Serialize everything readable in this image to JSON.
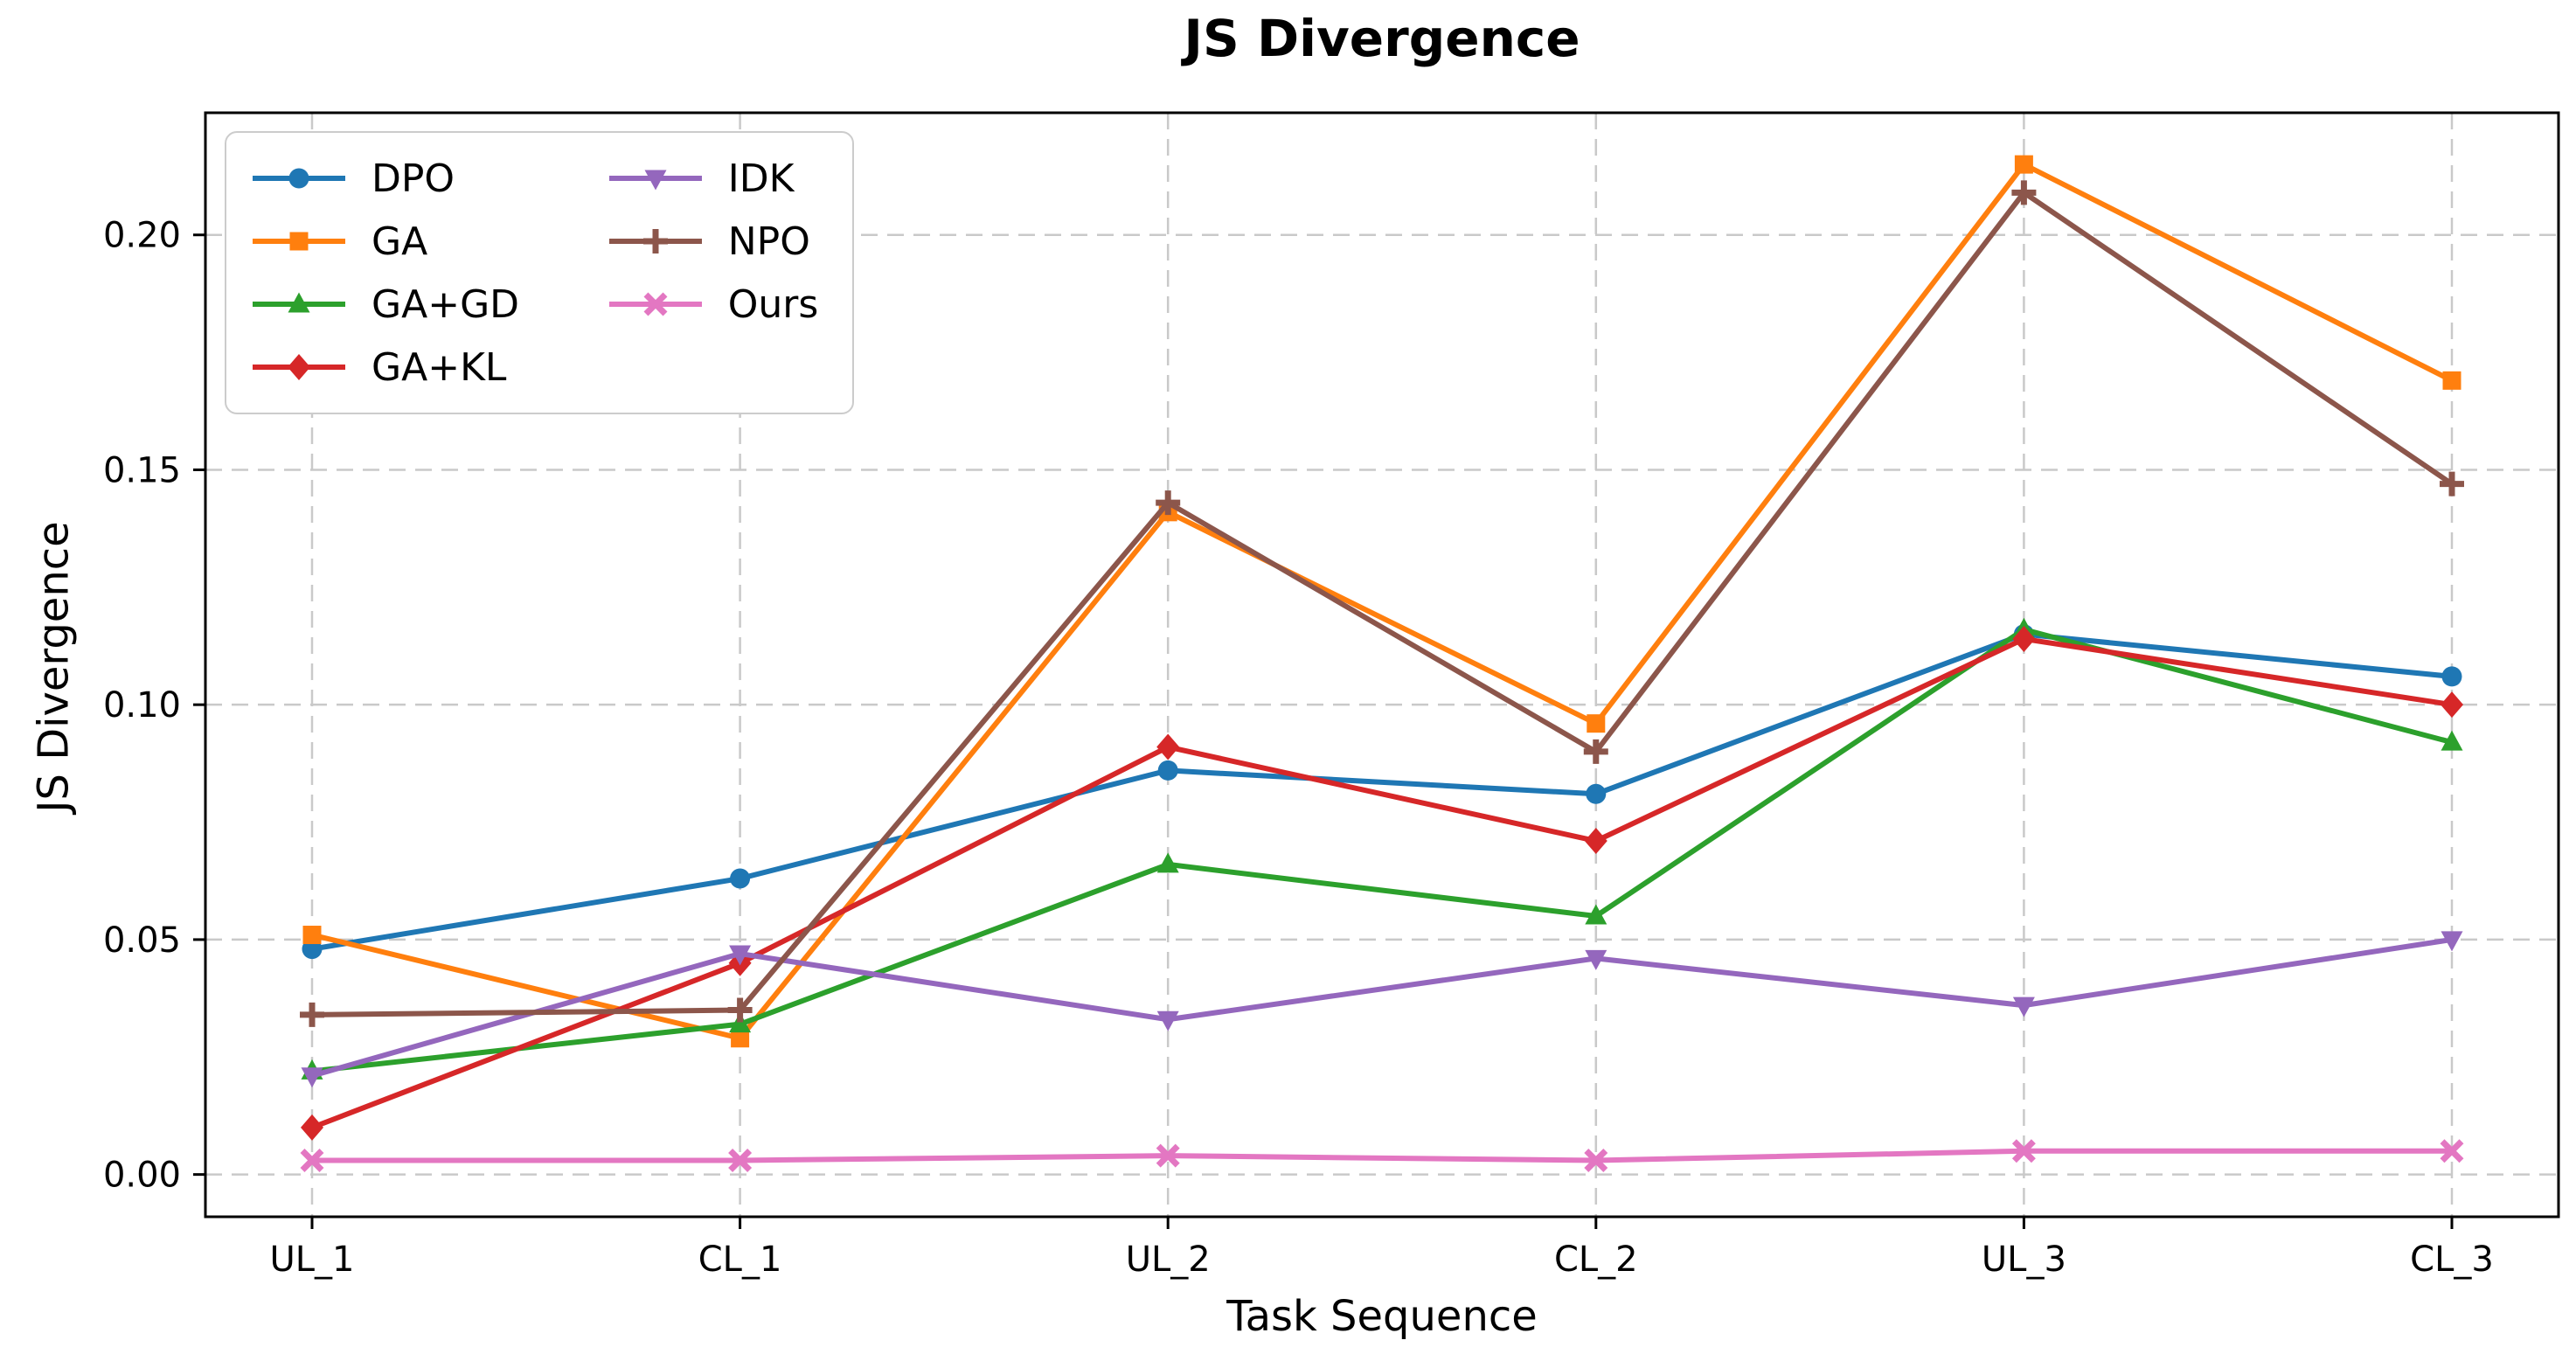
{
  "page": {
    "background": "#ffffff"
  },
  "chart_data": {
    "type": "line",
    "title": "JS Divergence",
    "xlabel": "Task Sequence",
    "ylabel": "JS Divergence",
    "categories": [
      "UL_1",
      "CL_1",
      "UL_2",
      "CL_2",
      "UL_3",
      "CL_3"
    ],
    "ytick_values": [
      0.0,
      0.05,
      0.1,
      0.15,
      0.2
    ],
    "ytick_labels": [
      "0.00",
      "0.05",
      "0.10",
      "0.15",
      "0.20"
    ],
    "ylim": [
      -0.009,
      0.226
    ],
    "grid": true,
    "grid_color": "#c9c9c9",
    "spine_color": "#000000",
    "legend_position": "upper-left",
    "legend_columns": 2,
    "series": [
      {
        "name": "DPO",
        "color": "#1f77b4",
        "marker": "circle",
        "values": [
          0.048,
          0.063,
          0.086,
          0.081,
          0.115,
          0.106
        ]
      },
      {
        "name": "GA",
        "color": "#ff7f0e",
        "marker": "square",
        "values": [
          0.051,
          0.029,
          0.141,
          0.096,
          0.215,
          0.169
        ]
      },
      {
        "name": "GA+GD",
        "color": "#2ca02c",
        "marker": "triangle-up",
        "values": [
          0.022,
          0.032,
          0.066,
          0.055,
          0.116,
          0.092
        ]
      },
      {
        "name": "GA+KL",
        "color": "#d62728",
        "marker": "diamond",
        "values": [
          0.01,
          0.045,
          0.091,
          0.071,
          0.114,
          0.1
        ]
      },
      {
        "name": "IDK",
        "color": "#9467bd",
        "marker": "triangle-down",
        "values": [
          0.021,
          0.047,
          0.033,
          0.046,
          0.036,
          0.05
        ]
      },
      {
        "name": "NPO",
        "color": "#8c564b",
        "marker": "plus",
        "values": [
          0.034,
          0.035,
          0.143,
          0.09,
          0.209,
          0.147
        ]
      },
      {
        "name": "Ours",
        "color": "#e377c2",
        "marker": "x",
        "values": [
          0.003,
          0.003,
          0.004,
          0.003,
          0.005,
          0.005
        ]
      }
    ]
  }
}
